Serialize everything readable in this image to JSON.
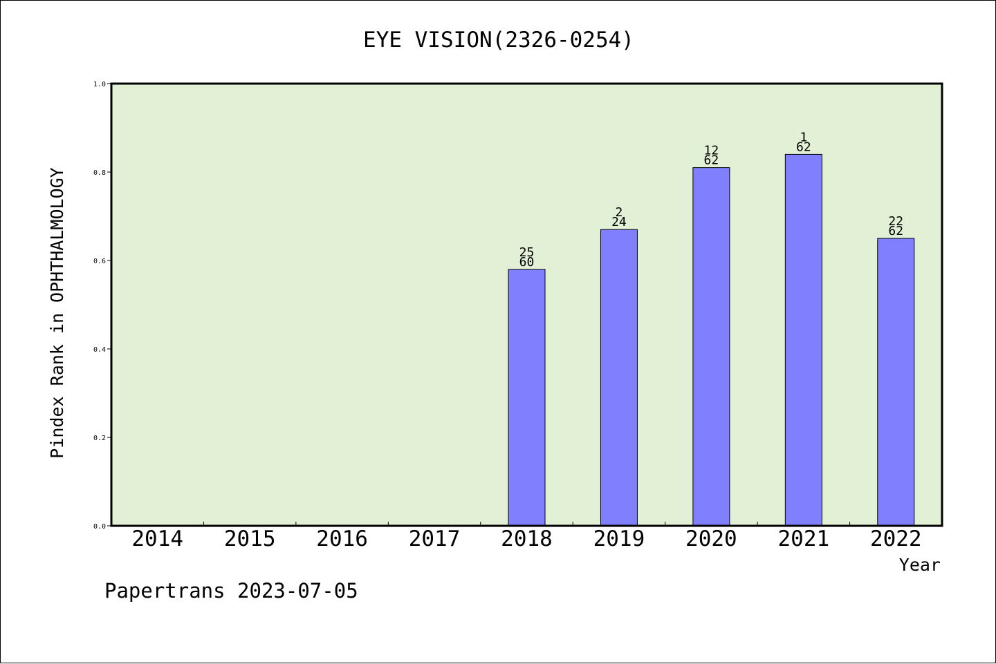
{
  "chart_data": {
    "type": "bar",
    "title": "EYE VISION(2326-0254)",
    "xlabel": "Year",
    "ylabel": "Pindex Rank in OPHTHALMOLOGY",
    "categories": [
      "2014",
      "2015",
      "2016",
      "2017",
      "2018",
      "2019",
      "2020",
      "2021",
      "2022"
    ],
    "values": [
      null,
      null,
      null,
      null,
      0.58,
      0.67,
      0.81,
      0.84,
      0.65
    ],
    "bar_labels": [
      null,
      null,
      null,
      null,
      {
        "top": "25",
        "bottom": "60"
      },
      {
        "top": "2",
        "bottom": "24"
      },
      {
        "top": "12",
        "bottom": "62"
      },
      {
        "top": "1",
        "bottom": "62"
      },
      {
        "top": "22",
        "bottom": "62"
      }
    ],
    "ylim": [
      0,
      1.0
    ],
    "yticks": [
      "0.0",
      "0.2",
      "0.4",
      "0.6",
      "0.8",
      "1.0"
    ],
    "grid": false,
    "colors": {
      "plot_background": "#e2f0d6",
      "bar_fill": "#8080ff",
      "bar_edge": "#000000"
    }
  },
  "footer": "Papertrans 2023-07-05"
}
